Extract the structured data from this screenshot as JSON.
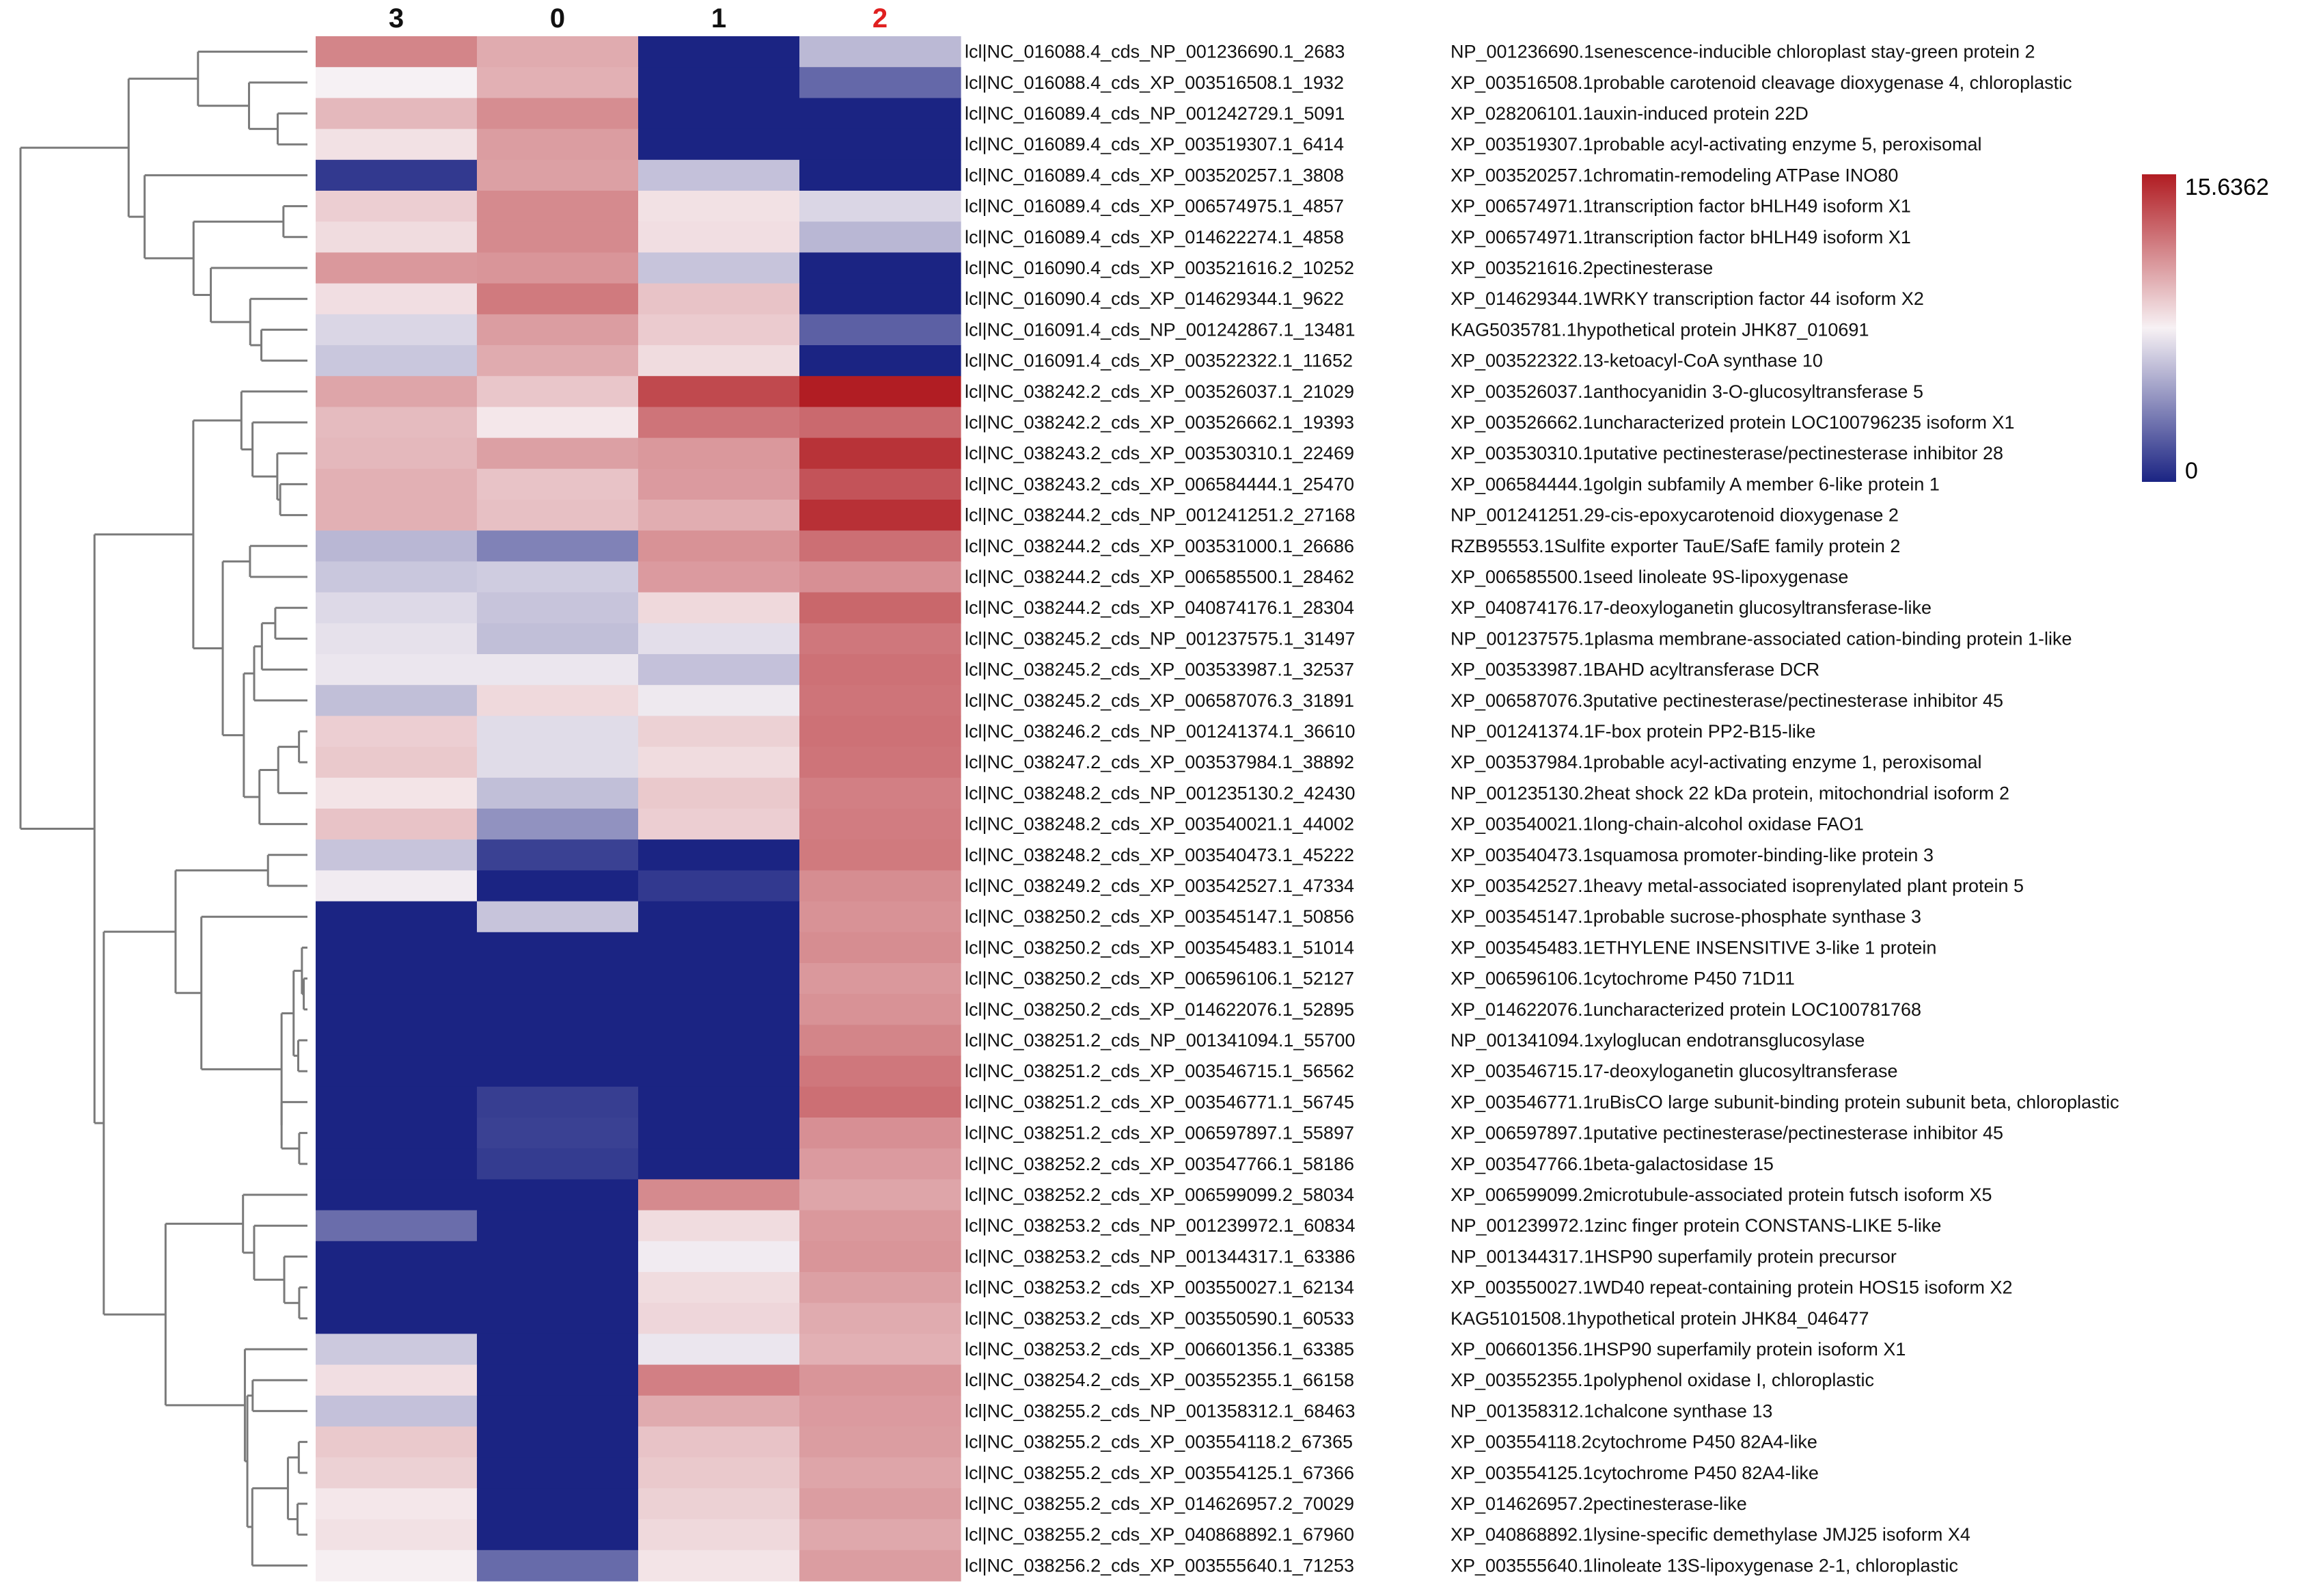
{
  "chart_data": {
    "type": "heatmap",
    "title": "",
    "columns": [
      "3",
      "0",
      "1",
      "2"
    ],
    "highlighted_column": "2",
    "scale": {
      "min": 0,
      "max": 15.6362,
      "min_label": "0",
      "max_label": "15.6362",
      "colors": {
        "low": "#1b2483",
        "mid": "#f7f1f4",
        "high": "#b11c22"
      }
    },
    "column_dendrogram": false,
    "rows": [
      {
        "id": "lcl|NC_016088.4_cds_NP_001236690.1_2683",
        "desc": "NP_001236690.1senescence-inducible chloroplast stay-green protein 2",
        "values": [
          11.8,
          10.4,
          0.0,
          5.7
        ]
      },
      {
        "id": "lcl|NC_016088.4_cds_XP_003516508.1_1932",
        "desc": "XP_003516508.1probable carotenoid cleavage dioxygenase 4, chloroplastic",
        "values": [
          7.8,
          10.2,
          0.0,
          2.6
        ]
      },
      {
        "id": "lcl|NC_016089.4_cds_NP_001242729.1_5091",
        "desc": "XP_028206101.1auxin-induced protein 22D",
        "values": [
          9.9,
          11.5,
          0.0,
          0.0
        ]
      },
      {
        "id": "lcl|NC_016089.4_cds_XP_003519307.1_6414",
        "desc": "XP_003519307.1probable acyl-activating enzyme 5, peroxisomal",
        "values": [
          8.4,
          10.9,
          0.0,
          0.0
        ]
      },
      {
        "id": "lcl|NC_016089.4_cds_XP_003520257.1_3808",
        "desc": "XP_003520257.1chromatin-remodeling ATPase INO80",
        "values": [
          0.8,
          10.8,
          6.0,
          0.0
        ]
      },
      {
        "id": "lcl|NC_016089.4_cds_XP_006574975.1_4857",
        "desc": "XP_006574971.1transcription factor bHLH49 isoform X1",
        "values": [
          9.1,
          11.6,
          8.4,
          6.8
        ]
      },
      {
        "id": "lcl|NC_016089.4_cds_XP_014622274.1_4858",
        "desc": "XP_006574971.1transcription factor bHLH49 isoform X1",
        "values": [
          8.6,
          11.6,
          8.5,
          5.6
        ]
      },
      {
        "id": "lcl|NC_016090.4_cds_XP_003521616.2_10252",
        "desc": "XP_003521616.2pectinesterase",
        "values": [
          11.1,
          11.2,
          6.1,
          0.0
        ]
      },
      {
        "id": "lcl|NC_016090.4_cds_XP_014629344.1_9622",
        "desc": "XP_014629344.1WRKY transcription factor 44 isoform X2",
        "values": [
          8.5,
          12.2,
          9.5,
          0.0
        ]
      },
      {
        "id": "lcl|NC_016091.4_cds_NP_001242867.1_13481",
        "desc": "KAG5035781.1hypothetical protein JHK87_010691",
        "values": [
          6.8,
          10.9,
          9.2,
          2.3
        ]
      },
      {
        "id": "lcl|NC_016091.4_cds_XP_003522322.1_11652",
        "desc": "XP_003522322.13-ketoacyl-CoA synthase 10",
        "values": [
          6.2,
          10.4,
          8.6,
          0.0
        ]
      },
      {
        "id": "lcl|NC_038242.2_cds_XP_003526037.1_21029",
        "desc": "XP_003526037.1anthocyanidin 3-O-glucosyltransferase 5",
        "values": [
          10.6,
          9.4,
          14.0,
          15.6
        ]
      },
      {
        "id": "lcl|NC_038242.2_cds_XP_003526662.1_19393",
        "desc": "XP_003526662.1uncharacterized protein LOC100796235 isoform X1",
        "values": [
          9.8,
          8.2,
          12.4,
          12.8
        ]
      },
      {
        "id": "lcl|NC_038243.2_cds_XP_003530310.1_22469",
        "desc": "XP_003530310.1putative pectinesterase/pectinesterase inhibitor 28",
        "values": [
          9.9,
          10.8,
          11.1,
          14.8
        ]
      },
      {
        "id": "lcl|NC_038243.2_cds_XP_006584444.1_25470",
        "desc": "XP_006584444.1golgin subfamily A member 6-like protein 1",
        "values": [
          10.2,
          9.5,
          11.0,
          13.6
        ]
      },
      {
        "id": "lcl|NC_038244.2_cds_NP_001241251.2_27168",
        "desc": "NP_001241251.29-cis-epoxycarotenoid dioxygenase 2",
        "values": [
          10.2,
          9.6,
          10.3,
          14.9
        ]
      },
      {
        "id": "lcl|NC_038244.2_cds_XP_003531000.1_26686",
        "desc": "RZB95553.1Sulfite exporter TauE/SafE family protein 2",
        "values": [
          5.6,
          3.6,
          11.3,
          12.6
        ]
      },
      {
        "id": "lcl|NC_038244.2_cds_XP_006585500.1_28462",
        "desc": "XP_006585500.1seed linoleate 9S-lipoxygenase",
        "values": [
          6.2,
          6.4,
          11.0,
          11.4
        ]
      },
      {
        "id": "lcl|NC_038244.2_cds_XP_040874176.1_28304",
        "desc": "XP_040874176.17-deoxyloganetin glucosyltransferase-like",
        "values": [
          6.9,
          6.1,
          8.7,
          12.9
        ]
      },
      {
        "id": "lcl|NC_038245.2_cds_NP_001237575.1_31497",
        "desc": "NP_001237575.1plasma membrane-associated cation-binding protein 1-like",
        "values": [
          7.2,
          5.9,
          7.1,
          12.3
        ]
      },
      {
        "id": "lcl|NC_038245.2_cds_XP_003533987.1_32537",
        "desc": "XP_003533987.1BAHD acyltransferase DCR",
        "values": [
          7.4,
          7.4,
          6.0,
          12.5
        ]
      },
      {
        "id": "lcl|NC_038245.2_cds_XP_006587076.3_31891",
        "desc": "XP_006587076.3putative pectinesterase/pectinesterase inhibitor 45",
        "values": [
          5.9,
          8.7,
          7.5,
          12.4
        ]
      },
      {
        "id": "lcl|NC_038246.2_cds_NP_001241374.1_36610",
        "desc": "NP_001241374.1F-box protein PP2-B15-like",
        "values": [
          9.1,
          7.0,
          9.0,
          12.5
        ]
      },
      {
        "id": "lcl|NC_038247.2_cds_XP_003537984.1_38892",
        "desc": "XP_003537984.1probable acyl-activating enzyme 1, peroxisomal",
        "values": [
          9.3,
          7.0,
          8.6,
          12.4
        ]
      },
      {
        "id": "lcl|NC_038248.2_cds_NP_001235130.2_42430",
        "desc": "NP_001235130.2heat shock 22 kDa protein, mitochondrial isoform 2",
        "values": [
          8.3,
          5.9,
          9.3,
          12.0
        ]
      },
      {
        "id": "lcl|NC_038248.2_cds_XP_003540021.1_44002",
        "desc": "XP_003540021.1long-chain-alcohol oxidase FAO1",
        "values": [
          9.5,
          4.2,
          9.1,
          12.1
        ]
      },
      {
        "id": "lcl|NC_038248.2_cds_XP_003540473.1_45222",
        "desc": "XP_003540473.1squamosa promoter-binding-like protein 3",
        "values": [
          6.1,
          1.1,
          0.0,
          12.2
        ]
      },
      {
        "id": "lcl|NC_038249.2_cds_XP_003542527.1_47334",
        "desc": "XP_003542527.1heavy metal-associated isoprenylated plant protein 5",
        "values": [
          7.6,
          0.0,
          0.8,
          11.5
        ]
      },
      {
        "id": "lcl|NC_038250.2_cds_XP_003545147.1_50856",
        "desc": "XP_003545147.1probable sucrose-phosphate synthase 3",
        "values": [
          0.0,
          6.1,
          0.0,
          11.3
        ]
      },
      {
        "id": "lcl|NC_038250.2_cds_XP_003545483.1_51014",
        "desc": "XP_003545483.1ETHYLENE INSENSITIVE 3-like 1 protein",
        "values": [
          0.0,
          0.0,
          0.0,
          11.5
        ]
      },
      {
        "id": "lcl|NC_038250.2_cds_XP_006596106.1_52127",
        "desc": "XP_006596106.1cytochrome P450 71D11",
        "values": [
          0.0,
          0.0,
          0.0,
          11.1
        ]
      },
      {
        "id": "lcl|NC_038250.2_cds_XP_014622076.1_52895",
        "desc": "XP_014622076.1uncharacterized protein LOC100781768",
        "values": [
          0.0,
          0.0,
          0.0,
          11.3
        ]
      },
      {
        "id": "lcl|NC_038251.2_cds_NP_001341094.1_55700",
        "desc": "NP_001341094.1xyloglucan endotransglucosylase",
        "values": [
          0.0,
          0.0,
          0.0,
          11.8
        ]
      },
      {
        "id": "lcl|NC_038251.2_cds_XP_003546715.1_56562",
        "desc": "XP_003546715.17-deoxyloganetin glucosyltransferase",
        "values": [
          0.0,
          0.0,
          0.0,
          12.3
        ]
      },
      {
        "id": "lcl|NC_038251.2_cds_XP_003546771.1_56745",
        "desc": "XP_003546771.1ruBisCO large subunit-binding protein subunit beta, chloroplastic",
        "values": [
          0.0,
          1.0,
          0.0,
          12.6
        ]
      },
      {
        "id": "lcl|NC_038251.2_cds_XP_006597897.1_55897",
        "desc": "XP_006597897.1putative pectinesterase/pectinesterase inhibitor 45",
        "values": [
          0.0,
          1.1,
          0.0,
          11.4
        ]
      },
      {
        "id": "lcl|NC_038252.2_cds_XP_003547766.1_58186",
        "desc": "XP_003547766.1beta-galactosidase 15",
        "values": [
          0.0,
          0.9,
          0.0,
          11.0
        ]
      },
      {
        "id": "lcl|NC_038252.2_cds_XP_006599099.2_58034",
        "desc": "XP_006599099.2microtubule-associated protein futsch isoform X5",
        "values": [
          0.0,
          0.0,
          11.6,
          10.6
        ]
      },
      {
        "id": "lcl|NC_038253.2_cds_NP_001239972.1_60834",
        "desc": "NP_001239972.1zinc finger protein CONSTANS-LIKE 5-like",
        "values": [
          2.8,
          0.0,
          8.6,
          11.1
        ]
      },
      {
        "id": "lcl|NC_038253.2_cds_NP_001344317.1_63386",
        "desc": "NP_001344317.1HSP90 superfamily protein precursor",
        "values": [
          0.0,
          0.0,
          7.6,
          11.2
        ]
      },
      {
        "id": "lcl|NC_038253.2_cds_XP_003550027.1_62134",
        "desc": "XP_003550027.1WD40 repeat-containing protein HOS15 isoform X2",
        "values": [
          0.0,
          0.0,
          8.6,
          10.8
        ]
      },
      {
        "id": "lcl|NC_038253.2_cds_XP_003550590.1_60533",
        "desc": "KAG5101508.1hypothetical protein JHK84_046477",
        "values": [
          0.0,
          0.0,
          8.8,
          10.4
        ]
      },
      {
        "id": "lcl|NC_038253.2_cds_XP_006601356.1_63385",
        "desc": "XP_006601356.1HSP90 superfamily protein isoform X1",
        "values": [
          6.3,
          0.0,
          7.4,
          10.2
        ]
      },
      {
        "id": "lcl|NC_038254.2_cds_XP_003552355.1_66158",
        "desc": "XP_003552355.1polyphenol oxidase I, chloroplastic",
        "values": [
          8.5,
          0.0,
          12.0,
          11.2
        ]
      },
      {
        "id": "lcl|NC_038255.2_cds_NP_001358312.1_68463",
        "desc": "NP_001358312.1chalcone synthase 13",
        "values": [
          6.0,
          0.0,
          10.4,
          11.0
        ]
      },
      {
        "id": "lcl|NC_038255.2_cds_XP_003554118.2_67365",
        "desc": "XP_003554118.2cytochrome P450 82A4-like",
        "values": [
          9.3,
          0.0,
          9.5,
          10.9
        ]
      },
      {
        "id": "lcl|NC_038255.2_cds_XP_003554125.1_67366",
        "desc": "XP_003554125.1cytochrome P450 82A4-like",
        "values": [
          9.0,
          0.0,
          9.3,
          10.6
        ]
      },
      {
        "id": "lcl|NC_038255.2_cds_XP_014626957.2_70029",
        "desc": "XP_014626957.2pectinesterase-like",
        "values": [
          8.2,
          0.0,
          9.0,
          10.9
        ]
      },
      {
        "id": "lcl|NC_038255.2_cds_XP_040868892.1_67960",
        "desc": "XP_040868892.1lysine-specific demethylase JMJ25 isoform X4",
        "values": [
          8.4,
          0.0,
          8.7,
          10.5
        ]
      },
      {
        "id": "lcl|NC_038256.2_cds_XP_003555640.1_71253",
        "desc": "XP_003555640.1linoleate 13S-lipoxygenase 2-1, chloroplastic",
        "values": [
          7.9,
          2.7,
          8.3,
          10.9
        ]
      }
    ]
  }
}
